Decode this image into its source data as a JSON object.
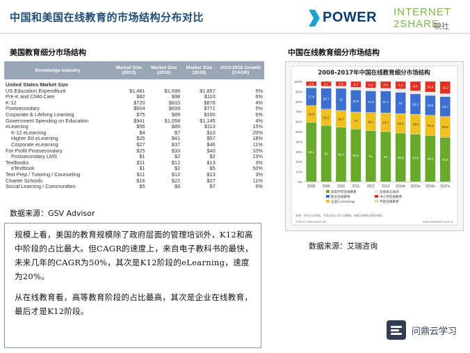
{
  "header": {
    "title": "中国和美国在线教育的市场结构分布对比",
    "logo_power": "POWER",
    "logo_i2s_line1": "INTERNET",
    "logo_i2s_line2": "2SHARE",
    "logo_i2s_cn": "映社"
  },
  "left": {
    "section_title": "美国教育细分市场结构",
    "source": "数据来源：GSV Advisor",
    "table": {
      "headers": [
        "Knowledge Industry",
        "Market Size (2013)",
        "Market Size (2016)",
        "Market Size (2018)",
        "2013-2018 Growth (CAGR)"
      ],
      "rows": [
        {
          "name": "United States Market Size",
          "v13": "",
          "v16": "",
          "v18": "",
          "cagr": "",
          "kind": "grp"
        },
        {
          "name": "US Education Expenditure",
          "v13": "$1,481",
          "v16": "$1,696",
          "v18": "$1,857",
          "cagr": "5%",
          "kind": ""
        },
        {
          "name": "Pre-K and Child Care",
          "v13": "$82",
          "v16": "$98",
          "v18": "$110",
          "cagr": "6%",
          "kind": ""
        },
        {
          "name": "K-12",
          "v13": "$720",
          "v16": "$810",
          "v18": "$876",
          "cagr": "4%",
          "kind": ""
        },
        {
          "name": "Postsecondary",
          "v13": "$604",
          "v16": "$699",
          "v18": "$771",
          "cagr": "5%",
          "kind": ""
        },
        {
          "name": "Corporate & Lifelong Learning",
          "v13": "$75",
          "v16": "$89",
          "v18": "$100",
          "cagr": "6%",
          "kind": ""
        },
        {
          "name": "Government Spending on Education",
          "v13": "$941",
          "v16": "$1,058",
          "v18": "$1,145",
          "cagr": "4%",
          "kind": ""
        },
        {
          "name": "eLearning",
          "v13": "$56",
          "v16": "$85",
          "v18": "$113",
          "cagr": "15%",
          "kind": ""
        },
        {
          "name": "K-12 eLearning",
          "v13": "$4",
          "v16": "$7",
          "v18": "$10",
          "cagr": "20%",
          "kind": "ind"
        },
        {
          "name": "Higher Ed eLearning",
          "v13": "$25",
          "v16": "$41",
          "v18": "$57",
          "cagr": "18%",
          "kind": "ind"
        },
        {
          "name": "Corporate eLearning",
          "v13": "$27",
          "v16": "$37",
          "v18": "$46",
          "cagr": "11%",
          "kind": "ind"
        },
        {
          "name": "For-Profit Postsecondary",
          "v13": "$25",
          "v16": "$33",
          "v18": "$40",
          "cagr": "10%",
          "kind": ""
        },
        {
          "name": "Postsecondary LMS",
          "v13": "$1",
          "v16": "$2",
          "v18": "$2",
          "cagr": "15%",
          "kind": "ind"
        },
        {
          "name": "Textbooks",
          "v13": "$11",
          "v16": "$12",
          "v18": "$13",
          "cagr": "3%",
          "kind": ""
        },
        {
          "name": "eTextbook",
          "v13": "$1",
          "v16": "$2",
          "v18": "$5",
          "cagr": "50%",
          "kind": "ind"
        },
        {
          "name": "Test Prep / Tutoring / Counseling",
          "v13": "$11",
          "v16": "$12",
          "v18": "$13",
          "cagr": "3%",
          "kind": ""
        },
        {
          "name": "Charter Schools",
          "v13": "$16",
          "v16": "$22",
          "v18": "$27",
          "cagr": "11%",
          "kind": ""
        },
        {
          "name": "Social Learning / Communities",
          "v13": "$5",
          "v16": "$6",
          "v18": "$7",
          "cagr": "6%",
          "kind": ""
        }
      ]
    },
    "note_p1": "规模上看，美国的教育规模除了政府层面的管理培训外，K12和高中阶段的占比最大。但CAGR的速度上，来自电子教科书的最快，未来几年的CAGR为50%，其次是K12阶段的eLearning，速度为20%。",
    "note_p2": "从在线教育看，高等教育阶段的占比最高，其次是企业在线教育，最后才是K12阶段。"
  },
  "right": {
    "section_title": "中国在线教育细分市场结构",
    "source": "数据来源：艾瑞咨询"
  },
  "chart_data": {
    "type": "bar",
    "title": "2008-2017年中国在线教育细分市场结构",
    "stacked": true,
    "categories": [
      "2008",
      "2009",
      "2010",
      "2011",
      "2012",
      "2013",
      "2014e",
      "2015e",
      "2016e",
      "2017e"
    ],
    "ylim": [
      0,
      100
    ],
    "yticks": [
      "0%",
      "10%",
      "20%",
      "30%",
      "40%",
      "50%",
      "60%",
      "70%",
      "80%",
      "90%",
      "100%"
    ],
    "series": [
      {
        "name": "高等学历在线教育",
        "color": "#6aaa2a",
        "values": [
          59.1,
          56.0,
          54.4,
          52.5,
          51.0,
          50.0,
          48.6,
          47.5,
          46.2,
          44.3
        ]
      },
      {
        "name": "企业E-Learning",
        "color": "#f0c020",
        "values": [
          16.8,
          16.5,
          16.7,
          17.0,
          18.1,
          18.7,
          19.4,
          19.8,
          20.1,
          20.8
        ]
      },
      {
        "name": "职业在线教育",
        "color": "#3b6fd0",
        "values": [
          17.8,
          20.7,
          22.0,
          21.9,
          21.5,
          21.7,
          21.0,
          20.3,
          19.8,
          19.7
        ]
      },
      {
        "name": "在线语言培训",
        "color": "#e8e8e8",
        "values": [
          1.9,
          2.1,
          2.3,
          2.9,
          3.0,
          2.8,
          3.6,
          3.0,
          3.3,
          3.0
        ]
      },
      {
        "name": "中小学在线教育",
        "color": "#e03020",
        "values": [
          4.4,
          4.7,
          4.6,
          5.7,
          6.4,
          6.8,
          7.4,
          9.4,
          10.6,
          12.2
        ]
      }
    ],
    "legend": [
      "高等学历在线教育",
      "在线语言培训",
      "职业在线教育",
      "中小学在线教育",
      "企业E-Learning",
      "学前在线教育"
    ],
    "footer_left": "©2014.3 iResearch Inc.",
    "footer_right": "www.iresearch.com.cn",
    "footnote": "来源：综合企业财报、专家访谈以及行业数据，根据艾瑞统计模型核算。"
  },
  "badge": {
    "text": "问鼎云学习"
  }
}
